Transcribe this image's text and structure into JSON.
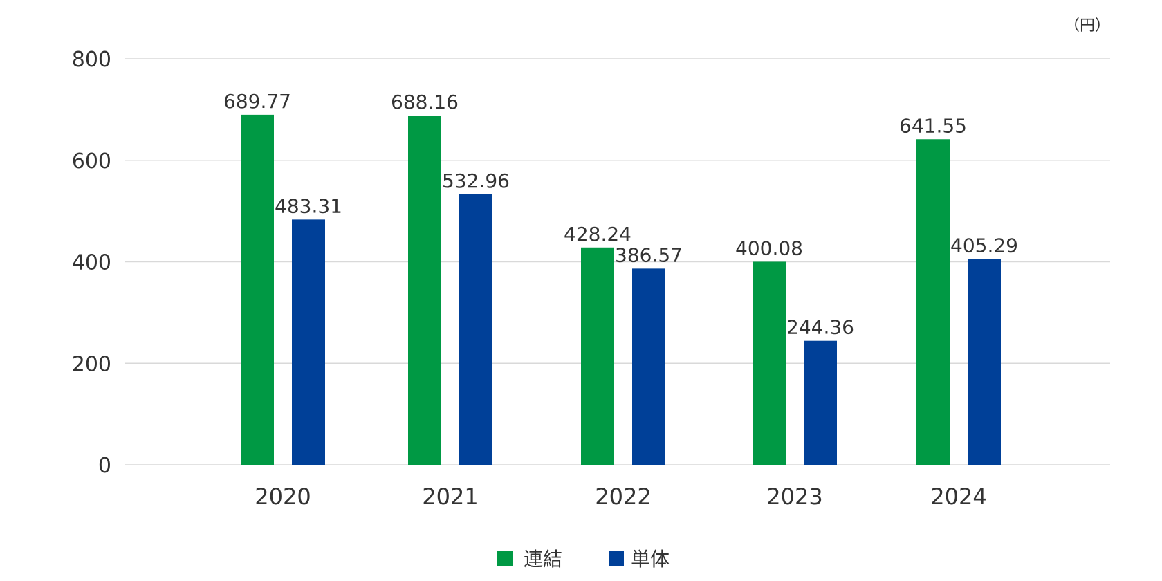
{
  "chart_data": {
    "type": "bar",
    "unit_label": "（円）",
    "categories": [
      "2020",
      "2021",
      "2022",
      "2023",
      "2024"
    ],
    "series": [
      {
        "name": "連結",
        "color": "#009944",
        "values": [
          689.77,
          688.16,
          428.24,
          400.08,
          641.55
        ]
      },
      {
        "name": "単体",
        "color": "#004098",
        "values": [
          483.31,
          532.96,
          386.57,
          244.36,
          405.29
        ]
      }
    ],
    "data_labels": [
      [
        "689.77",
        "688.16",
        "428.24",
        "400.08",
        "641.55"
      ],
      [
        "483.31",
        "532.96",
        "386.57",
        "244.36",
        "405.29"
      ]
    ],
    "ylim": [
      0,
      800
    ],
    "yticks": [
      "0",
      "200",
      "400",
      "600",
      "800"
    ],
    "grid": true,
    "legend_position": "bottom-center"
  }
}
